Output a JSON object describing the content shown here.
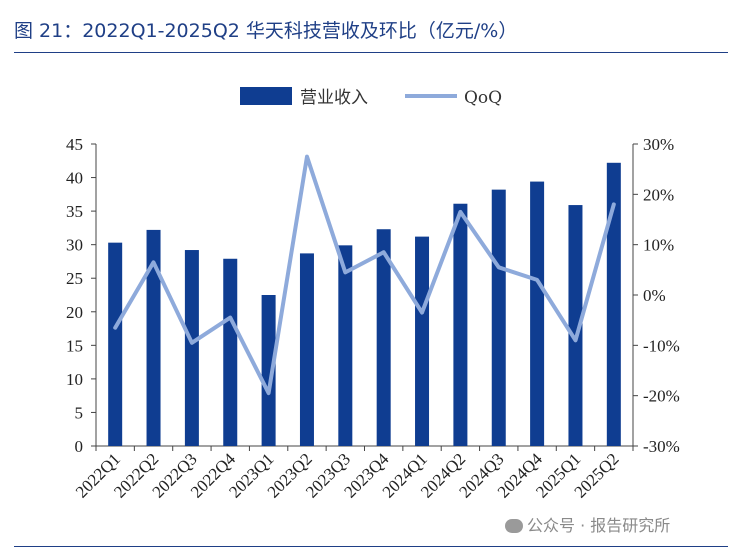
{
  "figure_title": "图 21：2022Q1-2025Q2 华天科技营收及环比（亿元/%）",
  "watermark": "公众号 · 报告研究所",
  "colors": {
    "bar": "#0f3d91",
    "line": "#8eaadb",
    "title": "#1f3f86"
  },
  "chart_data": {
    "type": "bar+line",
    "categories": [
      "2022Q1",
      "2022Q2",
      "2022Q3",
      "2022Q4",
      "2023Q1",
      "2023Q2",
      "2023Q3",
      "2023Q4",
      "2024Q1",
      "2024Q2",
      "2024Q3",
      "2024Q4",
      "2025Q1",
      "2025Q2"
    ],
    "series": [
      {
        "name": "营业收入",
        "type": "bar",
        "axis": "left",
        "values": [
          30.3,
          32.2,
          29.2,
          27.9,
          22.5,
          28.7,
          29.9,
          32.3,
          31.2,
          36.1,
          38.2,
          39.4,
          35.9,
          42.2
        ]
      },
      {
        "name": "QoQ",
        "type": "line",
        "axis": "right",
        "values": [
          -6.5,
          6.5,
          -9.5,
          -4.5,
          -19.5,
          27.5,
          4.5,
          8.5,
          -3.5,
          16.5,
          5.5,
          3.0,
          -9.0,
          18.0
        ]
      }
    ],
    "ylim_left": [
      0,
      45
    ],
    "yticks_left": [
      "0",
      "5",
      "10",
      "15",
      "20",
      "25",
      "30",
      "35",
      "40",
      "45"
    ],
    "ylim_right": [
      -30,
      30
    ],
    "yticks_right": [
      "-30%",
      "-20%",
      "-10%",
      "0%",
      "10%",
      "20%",
      "30%"
    ],
    "legend_position": "top-center",
    "grid": false
  }
}
